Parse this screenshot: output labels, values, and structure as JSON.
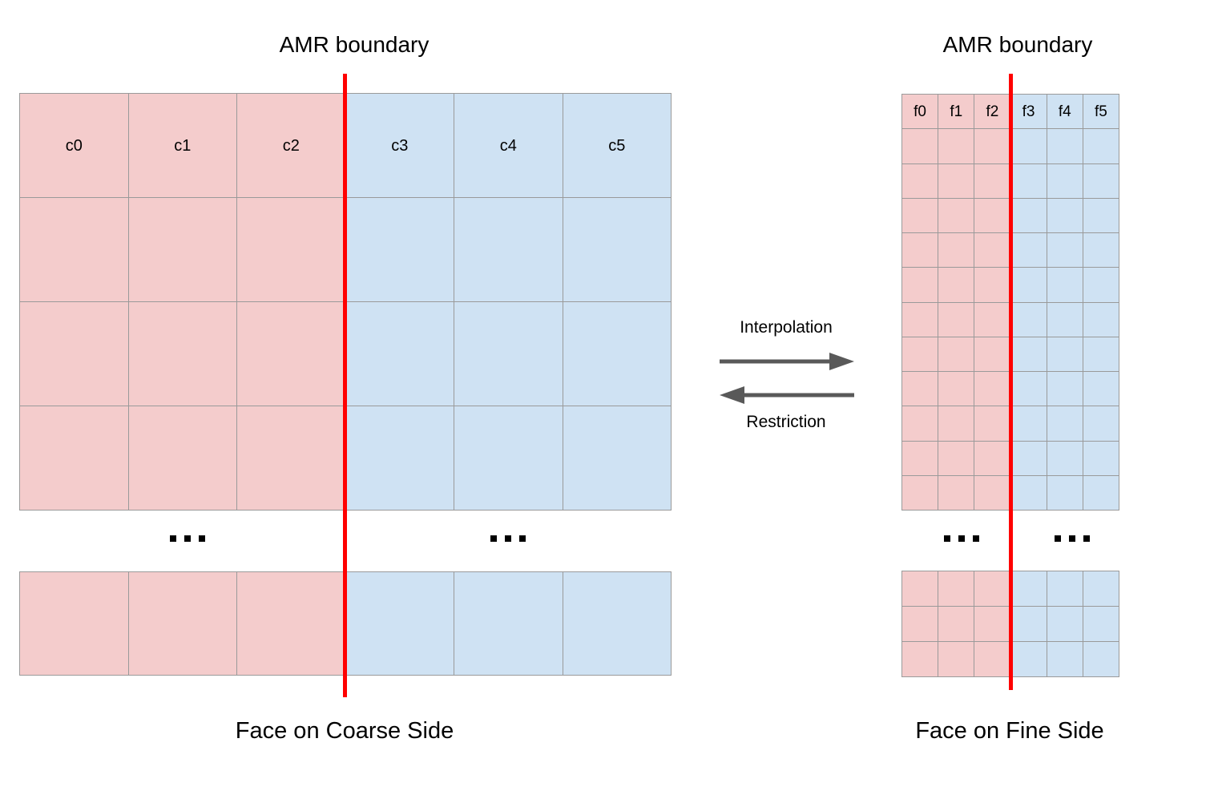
{
  "colors": {
    "background": "#ffffff",
    "text": "#000000",
    "pink": "#f4cccc",
    "blue": "#cfe2f3",
    "grid_border": "#9a9a9a",
    "boundary_line": "#ff0000",
    "arrow": "#595959"
  },
  "dots_per_group": 3,
  "coarse": {
    "title": "AMR boundary",
    "face_label": "Face on Coarse Side",
    "ellipsis": "...",
    "main_grid": {
      "cols": 6,
      "rows": 4,
      "pink_cols": 3,
      "labels": [
        "c0",
        "c1",
        "c2",
        "c3",
        "c4",
        "c5"
      ]
    },
    "bottom_grid": {
      "cols": 6,
      "rows": 1,
      "pink_cols": 3
    }
  },
  "fine": {
    "title": "AMR boundary",
    "face_label": "Face on Fine Side",
    "ellipsis": "...",
    "main_grid": {
      "cols": 6,
      "rows": 12,
      "pink_cols": 3,
      "labels": [
        "f0",
        "f1",
        "f2",
        "f3",
        "f4",
        "f5"
      ]
    },
    "bottom_grid": {
      "cols": 6,
      "rows": 3,
      "pink_cols": 3
    }
  },
  "middle": {
    "interpolation_label": "Interpolation",
    "restriction_label": "Restriction"
  }
}
